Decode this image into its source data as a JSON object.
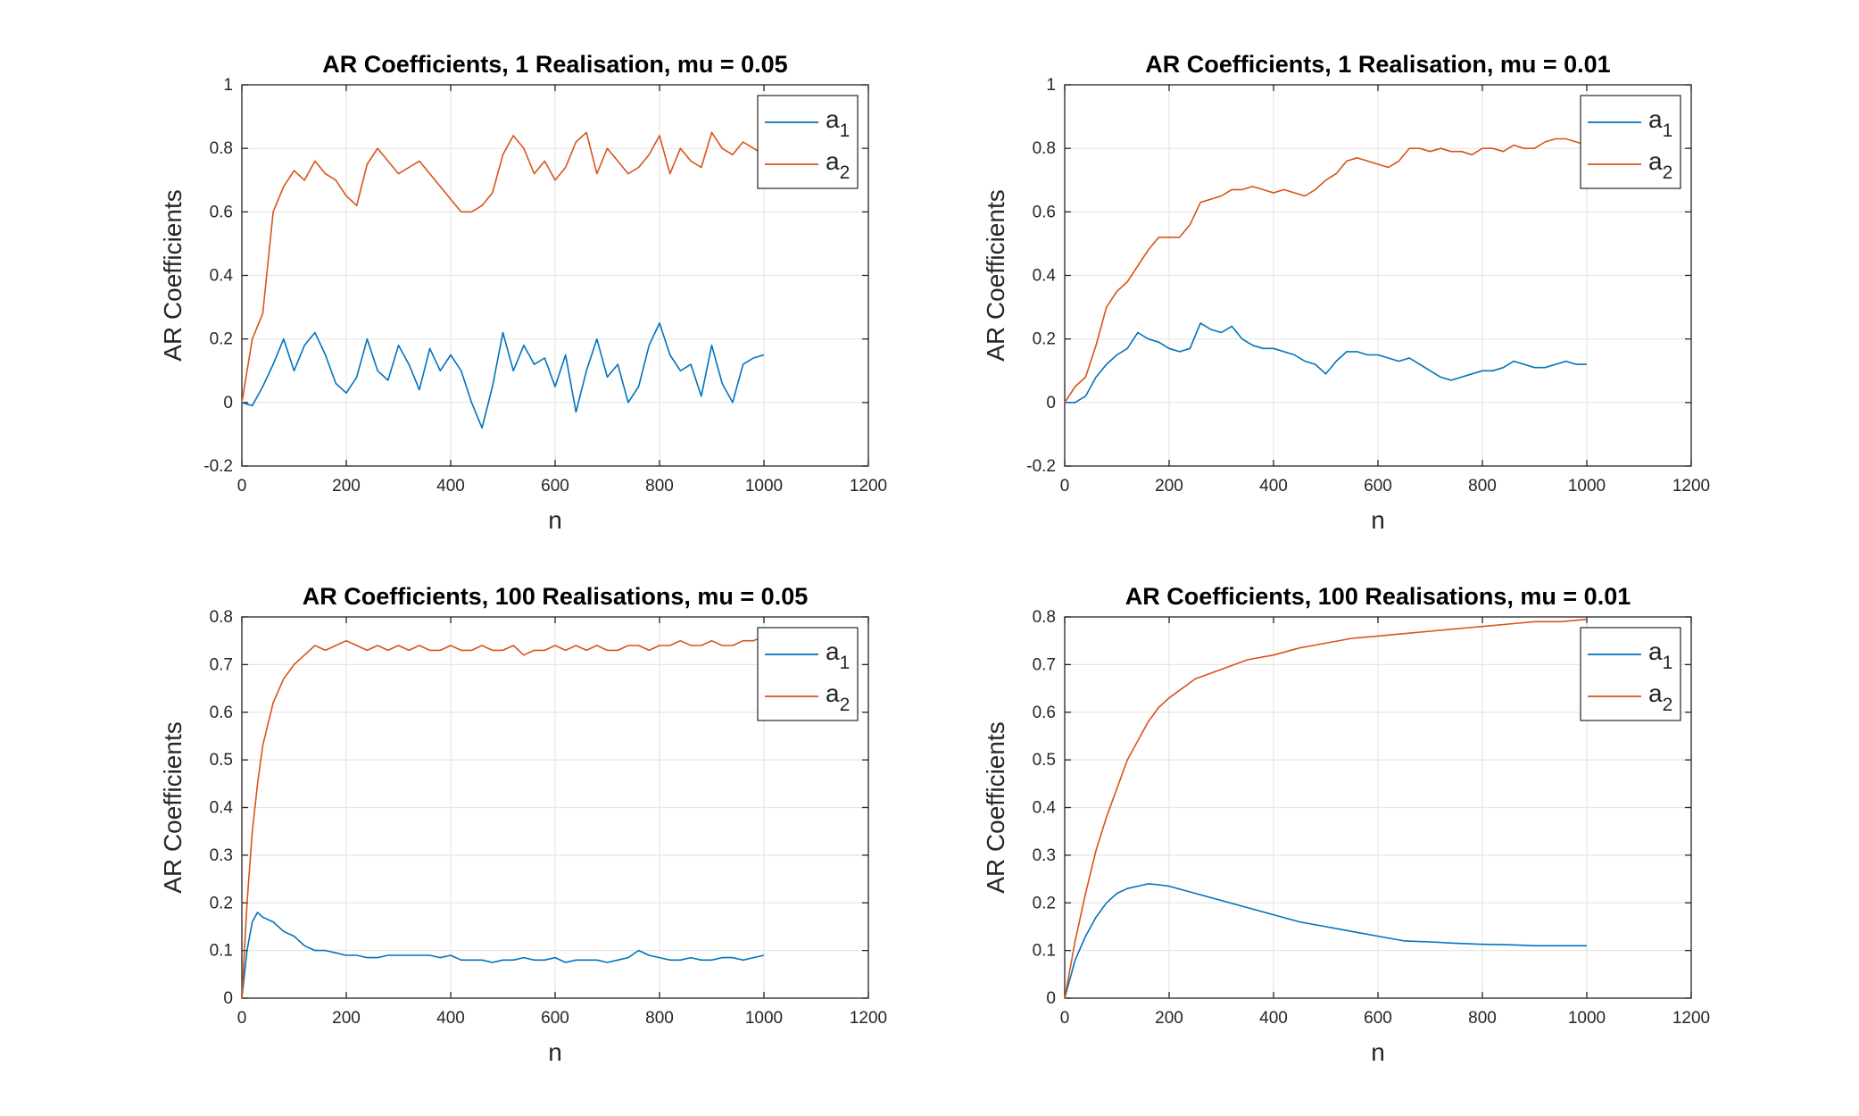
{
  "colors": {
    "a1": "#0072BD",
    "a2": "#D95319",
    "axis": "#262626",
    "grid": "#e6e6e6"
  },
  "chart_data": [
    {
      "type": "line",
      "title": "AR Coefficients, 1 Realisation, mu = 0.05",
      "xlabel": "n",
      "ylabel": "AR Coefficients",
      "xlim": [
        0,
        1200
      ],
      "ylim": [
        -0.2,
        1
      ],
      "xticks": [
        0,
        200,
        400,
        600,
        800,
        1000,
        1200
      ],
      "yticks": [
        -0.2,
        0,
        0.2,
        0.4,
        0.6,
        0.8,
        1
      ],
      "xtick_labels": [
        "0",
        "200",
        "400",
        "600",
        "800",
        "1000",
        "1200"
      ],
      "ytick_labels": [
        "-0.2",
        "0",
        "0.2",
        "0.4",
        "0.6",
        "0.8",
        "1"
      ],
      "grid": true,
      "legend": "top-right",
      "series": [
        {
          "name": "a1",
          "color": "#0072BD",
          "x": [
            0,
            20,
            40,
            60,
            80,
            100,
            120,
            140,
            160,
            180,
            200,
            220,
            240,
            260,
            280,
            300,
            320,
            340,
            360,
            380,
            400,
            420,
            440,
            460,
            480,
            500,
            520,
            540,
            560,
            580,
            600,
            620,
            640,
            660,
            680,
            700,
            720,
            740,
            760,
            780,
            800,
            820,
            840,
            860,
            880,
            900,
            920,
            940,
            960,
            980,
            1000
          ],
          "y": [
            0.0,
            -0.01,
            0.05,
            0.12,
            0.2,
            0.1,
            0.18,
            0.22,
            0.15,
            0.06,
            0.03,
            0.08,
            0.2,
            0.1,
            0.07,
            0.18,
            0.12,
            0.04,
            0.17,
            0.1,
            0.15,
            0.1,
            0.0,
            -0.08,
            0.05,
            0.22,
            0.1,
            0.18,
            0.12,
            0.14,
            0.05,
            0.15,
            -0.03,
            0.1,
            0.2,
            0.08,
            0.12,
            0.0,
            0.05,
            0.18,
            0.25,
            0.15,
            0.1,
            0.12,
            0.02,
            0.18,
            0.06,
            0.0,
            0.12,
            0.14,
            0.15
          ]
        },
        {
          "name": "a2",
          "color": "#D95319",
          "x": [
            0,
            20,
            40,
            60,
            80,
            100,
            120,
            140,
            160,
            180,
            200,
            220,
            240,
            260,
            280,
            300,
            320,
            340,
            360,
            380,
            400,
            420,
            440,
            460,
            480,
            500,
            520,
            540,
            560,
            580,
            600,
            620,
            640,
            660,
            680,
            700,
            720,
            740,
            760,
            780,
            800,
            820,
            840,
            860,
            880,
            900,
            920,
            940,
            960,
            980,
            1000
          ],
          "y": [
            0.0,
            0.2,
            0.28,
            0.6,
            0.68,
            0.73,
            0.7,
            0.76,
            0.72,
            0.7,
            0.65,
            0.62,
            0.75,
            0.8,
            0.76,
            0.72,
            0.74,
            0.76,
            0.72,
            0.68,
            0.64,
            0.6,
            0.6,
            0.62,
            0.66,
            0.78,
            0.84,
            0.8,
            0.72,
            0.76,
            0.7,
            0.74,
            0.82,
            0.85,
            0.72,
            0.8,
            0.76,
            0.72,
            0.74,
            0.78,
            0.84,
            0.72,
            0.8,
            0.76,
            0.74,
            0.85,
            0.8,
            0.78,
            0.82,
            0.8,
            0.78
          ]
        }
      ]
    },
    {
      "type": "line",
      "title": "AR Coefficients, 1 Realisation, mu = 0.01",
      "xlabel": "n",
      "ylabel": "AR Coefficients",
      "xlim": [
        0,
        1200
      ],
      "ylim": [
        -0.2,
        1
      ],
      "xticks": [
        0,
        200,
        400,
        600,
        800,
        1000,
        1200
      ],
      "yticks": [
        -0.2,
        0,
        0.2,
        0.4,
        0.6,
        0.8,
        1
      ],
      "xtick_labels": [
        "0",
        "200",
        "400",
        "600",
        "800",
        "1000",
        "1200"
      ],
      "ytick_labels": [
        "-0.2",
        "0",
        "0.2",
        "0.4",
        "0.6",
        "0.8",
        "1"
      ],
      "grid": true,
      "legend": "top-right",
      "series": [
        {
          "name": "a1",
          "color": "#0072BD",
          "x": [
            0,
            20,
            40,
            60,
            80,
            100,
            120,
            140,
            160,
            180,
            200,
            220,
            240,
            260,
            280,
            300,
            320,
            340,
            360,
            380,
            400,
            420,
            440,
            460,
            480,
            500,
            520,
            540,
            560,
            580,
            600,
            620,
            640,
            660,
            680,
            700,
            720,
            740,
            760,
            780,
            800,
            820,
            840,
            860,
            880,
            900,
            920,
            940,
            960,
            980,
            1000
          ],
          "y": [
            0.0,
            0.0,
            0.02,
            0.08,
            0.12,
            0.15,
            0.17,
            0.22,
            0.2,
            0.19,
            0.17,
            0.16,
            0.17,
            0.25,
            0.23,
            0.22,
            0.24,
            0.2,
            0.18,
            0.17,
            0.17,
            0.16,
            0.15,
            0.13,
            0.12,
            0.09,
            0.13,
            0.16,
            0.16,
            0.15,
            0.15,
            0.14,
            0.13,
            0.14,
            0.12,
            0.1,
            0.08,
            0.07,
            0.08,
            0.09,
            0.1,
            0.1,
            0.11,
            0.13,
            0.12,
            0.11,
            0.11,
            0.12,
            0.13,
            0.12,
            0.12
          ]
        },
        {
          "name": "a2",
          "color": "#D95319",
          "x": [
            0,
            20,
            40,
            60,
            80,
            100,
            120,
            140,
            160,
            180,
            200,
            220,
            240,
            260,
            280,
            300,
            320,
            340,
            360,
            380,
            400,
            420,
            440,
            460,
            480,
            500,
            520,
            540,
            560,
            580,
            600,
            620,
            640,
            660,
            680,
            700,
            720,
            740,
            760,
            780,
            800,
            820,
            840,
            860,
            880,
            900,
            920,
            940,
            960,
            980,
            1000
          ],
          "y": [
            0.0,
            0.05,
            0.08,
            0.18,
            0.3,
            0.35,
            0.38,
            0.43,
            0.48,
            0.52,
            0.52,
            0.52,
            0.56,
            0.63,
            0.64,
            0.65,
            0.67,
            0.67,
            0.68,
            0.67,
            0.66,
            0.67,
            0.66,
            0.65,
            0.67,
            0.7,
            0.72,
            0.76,
            0.77,
            0.76,
            0.75,
            0.74,
            0.76,
            0.8,
            0.8,
            0.79,
            0.8,
            0.79,
            0.79,
            0.78,
            0.8,
            0.8,
            0.79,
            0.81,
            0.8,
            0.8,
            0.82,
            0.83,
            0.83,
            0.82,
            0.81
          ]
        }
      ]
    },
    {
      "type": "line",
      "title": "AR Coefficients, 100 Realisations, mu = 0.05",
      "xlabel": "n",
      "ylabel": "AR Coefficients",
      "xlim": [
        0,
        1200
      ],
      "ylim": [
        0,
        0.8
      ],
      "xticks": [
        0,
        200,
        400,
        600,
        800,
        1000,
        1200
      ],
      "yticks": [
        0,
        0.1,
        0.2,
        0.3,
        0.4,
        0.5,
        0.6,
        0.7,
        0.8
      ],
      "xtick_labels": [
        "0",
        "200",
        "400",
        "600",
        "800",
        "1000",
        "1200"
      ],
      "ytick_labels": [
        "0",
        "0.1",
        "0.2",
        "0.3",
        "0.4",
        "0.5",
        "0.6",
        "0.7",
        "0.8"
      ],
      "grid": true,
      "legend": "top-right",
      "series": [
        {
          "name": "a1",
          "color": "#0072BD",
          "x": [
            0,
            10,
            20,
            30,
            40,
            60,
            80,
            100,
            120,
            140,
            160,
            180,
            200,
            220,
            240,
            260,
            280,
            300,
            320,
            340,
            360,
            380,
            400,
            420,
            440,
            460,
            480,
            500,
            520,
            540,
            560,
            580,
            600,
            620,
            640,
            660,
            680,
            700,
            720,
            740,
            760,
            780,
            800,
            820,
            840,
            860,
            880,
            900,
            920,
            940,
            960,
            980,
            1000
          ],
          "y": [
            0.0,
            0.1,
            0.16,
            0.18,
            0.17,
            0.16,
            0.14,
            0.13,
            0.11,
            0.1,
            0.1,
            0.095,
            0.09,
            0.09,
            0.085,
            0.085,
            0.09,
            0.09,
            0.09,
            0.09,
            0.09,
            0.085,
            0.09,
            0.08,
            0.08,
            0.08,
            0.075,
            0.08,
            0.08,
            0.085,
            0.08,
            0.08,
            0.085,
            0.075,
            0.08,
            0.08,
            0.08,
            0.075,
            0.08,
            0.085,
            0.1,
            0.09,
            0.085,
            0.08,
            0.08,
            0.085,
            0.08,
            0.08,
            0.085,
            0.085,
            0.08,
            0.085,
            0.09
          ]
        },
        {
          "name": "a2",
          "color": "#D95319",
          "x": [
            0,
            10,
            20,
            30,
            40,
            60,
            80,
            100,
            120,
            140,
            160,
            180,
            200,
            220,
            240,
            260,
            280,
            300,
            320,
            340,
            360,
            380,
            400,
            420,
            440,
            460,
            480,
            500,
            520,
            540,
            560,
            580,
            600,
            620,
            640,
            660,
            680,
            700,
            720,
            740,
            760,
            780,
            800,
            820,
            840,
            860,
            880,
            900,
            920,
            940,
            960,
            980,
            1000
          ],
          "y": [
            0.0,
            0.2,
            0.35,
            0.45,
            0.53,
            0.62,
            0.67,
            0.7,
            0.72,
            0.74,
            0.73,
            0.74,
            0.75,
            0.74,
            0.73,
            0.74,
            0.73,
            0.74,
            0.73,
            0.74,
            0.73,
            0.73,
            0.74,
            0.73,
            0.73,
            0.74,
            0.73,
            0.73,
            0.74,
            0.72,
            0.73,
            0.73,
            0.74,
            0.73,
            0.74,
            0.73,
            0.74,
            0.73,
            0.73,
            0.74,
            0.74,
            0.73,
            0.74,
            0.74,
            0.75,
            0.74,
            0.74,
            0.75,
            0.74,
            0.74,
            0.75,
            0.75,
            0.76
          ]
        }
      ]
    },
    {
      "type": "line",
      "title": "AR Coefficients, 100 Realisations, mu = 0.01",
      "xlabel": "n",
      "ylabel": "AR Coefficients",
      "xlim": [
        0,
        1200
      ],
      "ylim": [
        0,
        0.8
      ],
      "xticks": [
        0,
        200,
        400,
        600,
        800,
        1000,
        1200
      ],
      "yticks": [
        0,
        0.1,
        0.2,
        0.3,
        0.4,
        0.5,
        0.6,
        0.7,
        0.8
      ],
      "xtick_labels": [
        "0",
        "200",
        "400",
        "600",
        "800",
        "1000",
        "1200"
      ],
      "ytick_labels": [
        "0",
        "0.1",
        "0.2",
        "0.3",
        "0.4",
        "0.5",
        "0.6",
        "0.7",
        "0.8"
      ],
      "grid": true,
      "legend": "top-right",
      "series": [
        {
          "name": "a1",
          "color": "#0072BD",
          "x": [
            0,
            20,
            40,
            60,
            80,
            100,
            120,
            140,
            160,
            180,
            200,
            250,
            300,
            350,
            400,
            450,
            500,
            550,
            600,
            650,
            700,
            750,
            800,
            850,
            900,
            950,
            1000
          ],
          "y": [
            0.0,
            0.08,
            0.13,
            0.17,
            0.2,
            0.22,
            0.23,
            0.235,
            0.24,
            0.238,
            0.235,
            0.22,
            0.205,
            0.19,
            0.175,
            0.16,
            0.15,
            0.14,
            0.13,
            0.12,
            0.118,
            0.115,
            0.113,
            0.112,
            0.11,
            0.11,
            0.11
          ]
        },
        {
          "name": "a2",
          "color": "#D95319",
          "x": [
            0,
            20,
            40,
            60,
            80,
            100,
            120,
            140,
            160,
            180,
            200,
            250,
            300,
            350,
            400,
            450,
            500,
            550,
            600,
            650,
            700,
            750,
            800,
            850,
            900,
            950,
            1000
          ],
          "y": [
            0.0,
            0.12,
            0.22,
            0.31,
            0.38,
            0.44,
            0.5,
            0.54,
            0.58,
            0.61,
            0.63,
            0.67,
            0.69,
            0.71,
            0.72,
            0.735,
            0.745,
            0.755,
            0.76,
            0.765,
            0.77,
            0.775,
            0.78,
            0.785,
            0.79,
            0.79,
            0.795
          ]
        }
      ]
    }
  ]
}
